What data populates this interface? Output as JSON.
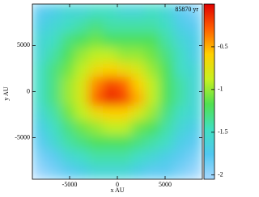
{
  "chart_data": {
    "type": "heatmap",
    "annotation": "85870 yr",
    "xlabel": "x AU",
    "ylabel": "y AU",
    "xlim": [
      -8900,
      8900
    ],
    "ylim": [
      -9500,
      9500
    ],
    "xticks": [
      -5000,
      0,
      5000
    ],
    "yticks": [
      -5000,
      0,
      5000
    ],
    "clim": [
      -2.05,
      0
    ],
    "cticks": [
      -0.5,
      -1,
      -1.5,
      -2
    ],
    "colormap": [
      "#a8d8ff",
      "#50c8f0",
      "#40e0c0",
      "#50e050",
      "#c8f020",
      "#ffd000",
      "#ff6000",
      "#e00000"
    ],
    "z": [
      [
        -1.8,
        -1.7,
        -1.6,
        -1.6,
        -1.5,
        -1.5,
        -1.6,
        -1.6,
        -1.5,
        -1.6,
        -1.8,
        -1.9
      ],
      [
        -1.7,
        -1.6,
        -1.5,
        -1.4,
        -1.3,
        -1.4,
        -1.4,
        -1.4,
        -1.4,
        -1.5,
        -1.7,
        -1.8
      ],
      [
        -1.6,
        -1.5,
        -1.3,
        -1.2,
        -1.1,
        -1.2,
        -1.2,
        -1.2,
        -1.2,
        -1.4,
        -1.6,
        -1.7
      ],
      [
        -1.6,
        -1.4,
        -1.2,
        -1.0,
        -0.9,
        -0.9,
        -1.0,
        -1.0,
        -1.1,
        -1.3,
        -1.5,
        -1.7
      ],
      [
        -1.5,
        -1.3,
        -1.1,
        -0.9,
        -0.7,
        -0.6,
        -0.7,
        -0.8,
        -1.0,
        -1.2,
        -1.5,
        -1.6
      ],
      [
        -1.5,
        -1.3,
        -1.0,
        -0.8,
        -0.4,
        -0.2,
        -0.3,
        -0.6,
        -0.9,
        -1.2,
        -1.4,
        -1.6
      ],
      [
        -1.5,
        -1.3,
        -1.0,
        -0.8,
        -0.3,
        -0.1,
        -0.2,
        -0.5,
        -0.9,
        -1.2,
        -1.4,
        -1.6
      ],
      [
        -1.6,
        -1.4,
        -1.1,
        -0.9,
        -0.7,
        -0.6,
        -0.6,
        -0.8,
        -1.0,
        -1.3,
        -1.5,
        -1.6
      ],
      [
        -1.7,
        -1.5,
        -1.3,
        -1.1,
        -1.0,
        -0.9,
        -0.9,
        -1.1,
        -1.2,
        -1.4,
        -1.6,
        -1.7
      ],
      [
        -1.8,
        -1.6,
        -1.4,
        -1.3,
        -1.2,
        -1.2,
        -1.2,
        -1.3,
        -1.4,
        -1.5,
        -1.7,
        -1.8
      ],
      [
        -1.9,
        -1.8,
        -1.6,
        -1.5,
        -1.4,
        -1.4,
        -1.4,
        -1.5,
        -1.6,
        -1.7,
        -1.8,
        -1.9
      ],
      [
        -2.0,
        -1.9,
        -1.8,
        -1.7,
        -1.6,
        -1.6,
        -1.6,
        -1.7,
        -1.8,
        -1.8,
        -1.9,
        -2.0
      ]
    ]
  }
}
